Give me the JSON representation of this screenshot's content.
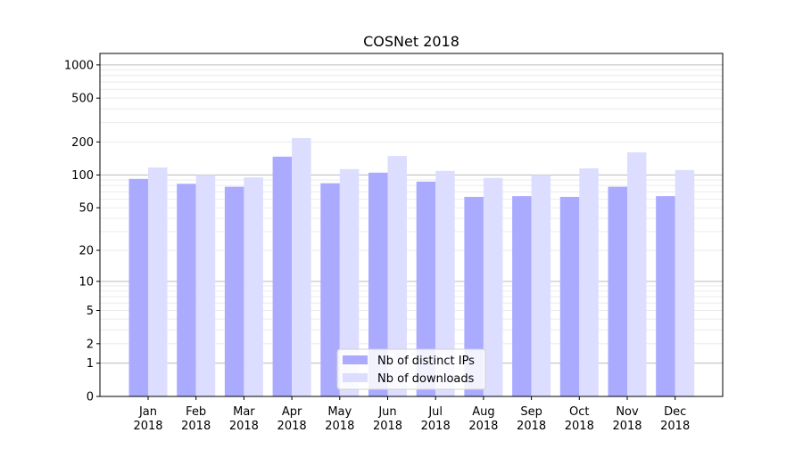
{
  "chart_data": {
    "type": "bar",
    "title": "COSNet 2018",
    "xlabel": "",
    "ylabel": "",
    "yscale": "log(y+1)",
    "ylim": [
      0,
      1270
    ],
    "grid": true,
    "legend_position": "bottom-center",
    "categories": [
      "Jan\n2018",
      "Feb\n2018",
      "Mar\n2018",
      "Apr\n2018",
      "May\n2018",
      "Jun\n2018",
      "Jul\n2018",
      "Aug\n2018",
      "Sep\n2018",
      "Oct\n2018",
      "Nov\n2018",
      "Dec\n2018"
    ],
    "yticks": [
      0,
      1,
      2,
      5,
      10,
      20,
      50,
      100,
      200,
      500,
      1000
    ],
    "series": [
      {
        "name": "Nb of distinct IPs",
        "color": "#aaaaff",
        "values": [
          92,
          83,
          78,
          147,
          84,
          105,
          87,
          63,
          64,
          63,
          78,
          64
        ]
      },
      {
        "name": "Nb of downloads",
        "color": "#ddddff",
        "values": [
          117,
          100,
          95,
          217,
          113,
          149,
          109,
          94,
          100,
          115,
          161,
          111
        ]
      }
    ]
  }
}
